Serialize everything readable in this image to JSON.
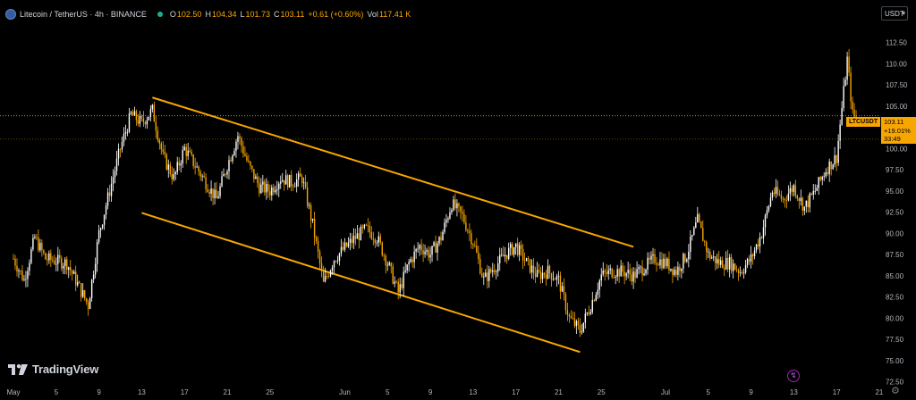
{
  "legend": {
    "symbol": "Litecoin / TetherUS · 4h · BINANCE",
    "open_label": "O",
    "open": "102.50",
    "high_label": "H",
    "high": "104.34",
    "low_label": "L",
    "low": "101.73",
    "close_label": "C",
    "close": "103.11",
    "change": "+0.61 (+0.60%)",
    "vol_label": "Vol",
    "vol": "117.41 K"
  },
  "currency_select": "USDT",
  "symbol_tag": "LTCUSDT",
  "price_box": {
    "price": "103.11",
    "change": "+19.01%",
    "countdown": "33:49"
  },
  "branding": "TradingView",
  "colors": {
    "up": "#ffffff",
    "down": "#f7a600",
    "channel": "#f7a600",
    "background": "#000000"
  },
  "chart_data": {
    "type": "candlestick",
    "y_range": [
      72.5,
      115
    ],
    "y_ticks": [
      "112.50",
      "110.00",
      "107.50",
      "105.00",
      "102.50",
      "100.00",
      "97.50",
      "95.00",
      "92.50",
      "90.00",
      "87.50",
      "85.00",
      "82.50",
      "80.00",
      "77.50",
      "75.00",
      "72.50"
    ],
    "y_tick_values": [
      112.5,
      110,
      107.5,
      105,
      102.5,
      100,
      97.5,
      95,
      92.5,
      90,
      87.5,
      85,
      82.5,
      80,
      77.5,
      75,
      72.5
    ],
    "x_ticks": [
      "May",
      "5",
      "9",
      "13",
      "17",
      "21",
      "25",
      "Jun",
      "5",
      "9",
      "13",
      "17",
      "21",
      "25",
      "Jul",
      "5",
      "9",
      "13",
      "17",
      "21",
      "25"
    ],
    "x_tick_days": [
      0,
      4,
      8,
      12,
      16,
      20,
      24,
      31,
      35,
      39,
      43,
      47,
      51,
      55,
      61,
      65,
      69,
      73,
      77,
      81,
      85
    ],
    "last_price": 103.11,
    "price_line": 101.1,
    "channel_upper": {
      "from": [
        "May 14",
        106.0
      ],
      "to": [
        "Jun 28",
        88.4
      ]
    },
    "channel_lower": {
      "from": [
        "May 13",
        92.4
      ],
      "to": [
        "Jun 23",
        76.0
      ]
    },
    "close_path": [
      [
        "May 1",
        87.0
      ],
      [
        "May 2",
        84.5
      ],
      [
        "May 3",
        89.5
      ],
      [
        "May 4",
        87.0
      ],
      [
        "May 6",
        86.5
      ],
      [
        "May 7",
        84.0
      ],
      [
        "May 8",
        81.5
      ],
      [
        "May 9",
        90.0
      ],
      [
        "May 10",
        95.0
      ],
      [
        "May 11",
        100.0
      ],
      [
        "May 12",
        104.0
      ],
      [
        "May 13",
        103.0
      ],
      [
        "May 14",
        104.5
      ],
      [
        "May 15",
        99.0
      ],
      [
        "May 16",
        96.5
      ],
      [
        "May 17",
        100.0
      ],
      [
        "May 18",
        98.0
      ],
      [
        "May 19",
        96.0
      ],
      [
        "May 20",
        94.0
      ],
      [
        "May 21",
        98.0
      ],
      [
        "May 22",
        101.5
      ],
      [
        "May 23",
        98.0
      ],
      [
        "May 24",
        95.5
      ],
      [
        "May 25",
        95.0
      ],
      [
        "May 26",
        96.5
      ],
      [
        "May 27",
        96.0
      ],
      [
        "May 28",
        96.5
      ],
      [
        "May 29",
        91.0
      ],
      [
        "May 30",
        84.0
      ],
      [
        "May 31",
        87.0
      ],
      [
        "Jun 2",
        89.5
      ],
      [
        "Jun 3",
        90.5
      ],
      [
        "Jun 4",
        89.5
      ],
      [
        "Jun 5",
        86.5
      ],
      [
        "Jun 6",
        83.0
      ],
      [
        "Jun 7",
        86.5
      ],
      [
        "Jun 8",
        88.5
      ],
      [
        "Jun 9",
        87.5
      ],
      [
        "Jun 10",
        89.5
      ],
      [
        "Jun 11",
        93.5
      ],
      [
        "Jun 12",
        92.0
      ],
      [
        "Jun 13",
        89.0
      ],
      [
        "Jun 14",
        84.5
      ],
      [
        "Jun 15",
        86.0
      ],
      [
        "Jun 16",
        87.5
      ],
      [
        "Jun 17",
        88.5
      ],
      [
        "Jun 18",
        86.5
      ],
      [
        "Jun 19",
        85.0
      ],
      [
        "Jun 20",
        85.5
      ],
      [
        "Jun 21",
        84.5
      ],
      [
        "Jun 22",
        80.0
      ],
      [
        "Jun 23",
        78.5
      ],
      [
        "Jun 24",
        81.5
      ],
      [
        "Jun 25",
        85.0
      ],
      [
        "Jun 26",
        85.5
      ],
      [
        "Jun 27",
        85.5
      ],
      [
        "Jun 28",
        85.0
      ],
      [
        "Jun 29",
        86.0
      ],
      [
        "Jun 30",
        87.0
      ],
      [
        "Jul 1",
        86.5
      ],
      [
        "Jul 2",
        85.5
      ],
      [
        "Jul 3",
        87.5
      ],
      [
        "Jul 4",
        91.5
      ],
      [
        "Jul 5",
        87.5
      ],
      [
        "Jul 6",
        86.5
      ],
      [
        "Jul 7",
        86.5
      ],
      [
        "Jul 8",
        85.5
      ],
      [
        "Jul 9",
        87.0
      ],
      [
        "Jul 10",
        90.0
      ],
      [
        "Jul 11",
        95.0
      ],
      [
        "Jul 12",
        94.0
      ],
      [
        "Jul 13",
        95.5
      ],
      [
        "Jul 14",
        93.0
      ],
      [
        "Jul 15",
        95.0
      ],
      [
        "Jul 16",
        97.5
      ],
      [
        "Jul 17",
        99.0
      ],
      [
        "Jul 18",
        110.5
      ],
      [
        "Jul 18 PM",
        104.0
      ],
      [
        "Jul 19",
        103.11
      ]
    ]
  }
}
